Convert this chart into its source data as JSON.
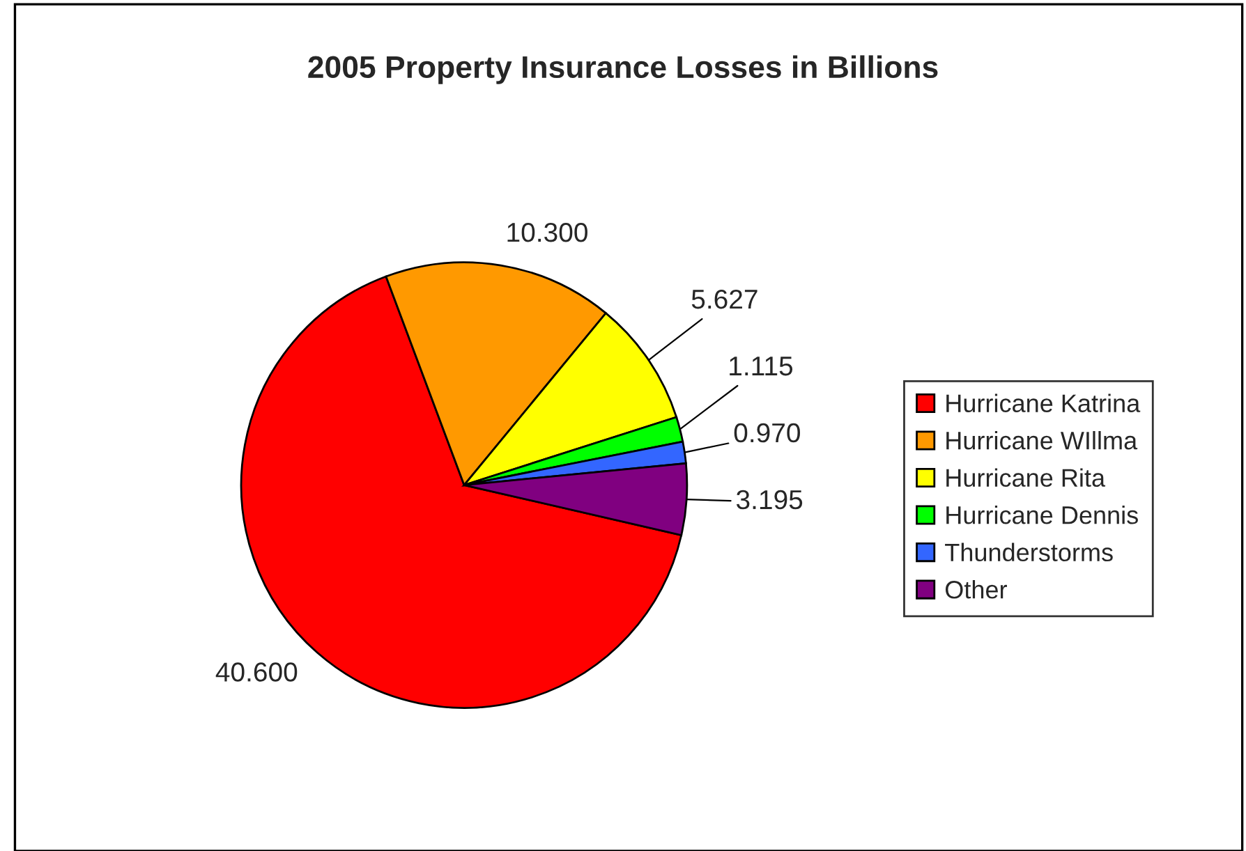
{
  "chart_data": {
    "type": "pie",
    "title": "2005 Property Insurance Losses in Billions",
    "categories": [
      "Hurricane Katrina",
      "Hurricane WIllma",
      "Hurricane Rita",
      "Hurricane Dennis",
      "Thunderstorms",
      "Other"
    ],
    "values": [
      40.6,
      10.3,
      5.627,
      1.115,
      0.97,
      3.195
    ],
    "value_labels": [
      "40.600",
      "10.300",
      "5.627",
      "1.115",
      "0.970",
      "3.195"
    ],
    "colors": [
      "#ff0000",
      "#ff9900",
      "#ffff00",
      "#00ff00",
      "#3366ff",
      "#800080"
    ],
    "legend": "right"
  }
}
